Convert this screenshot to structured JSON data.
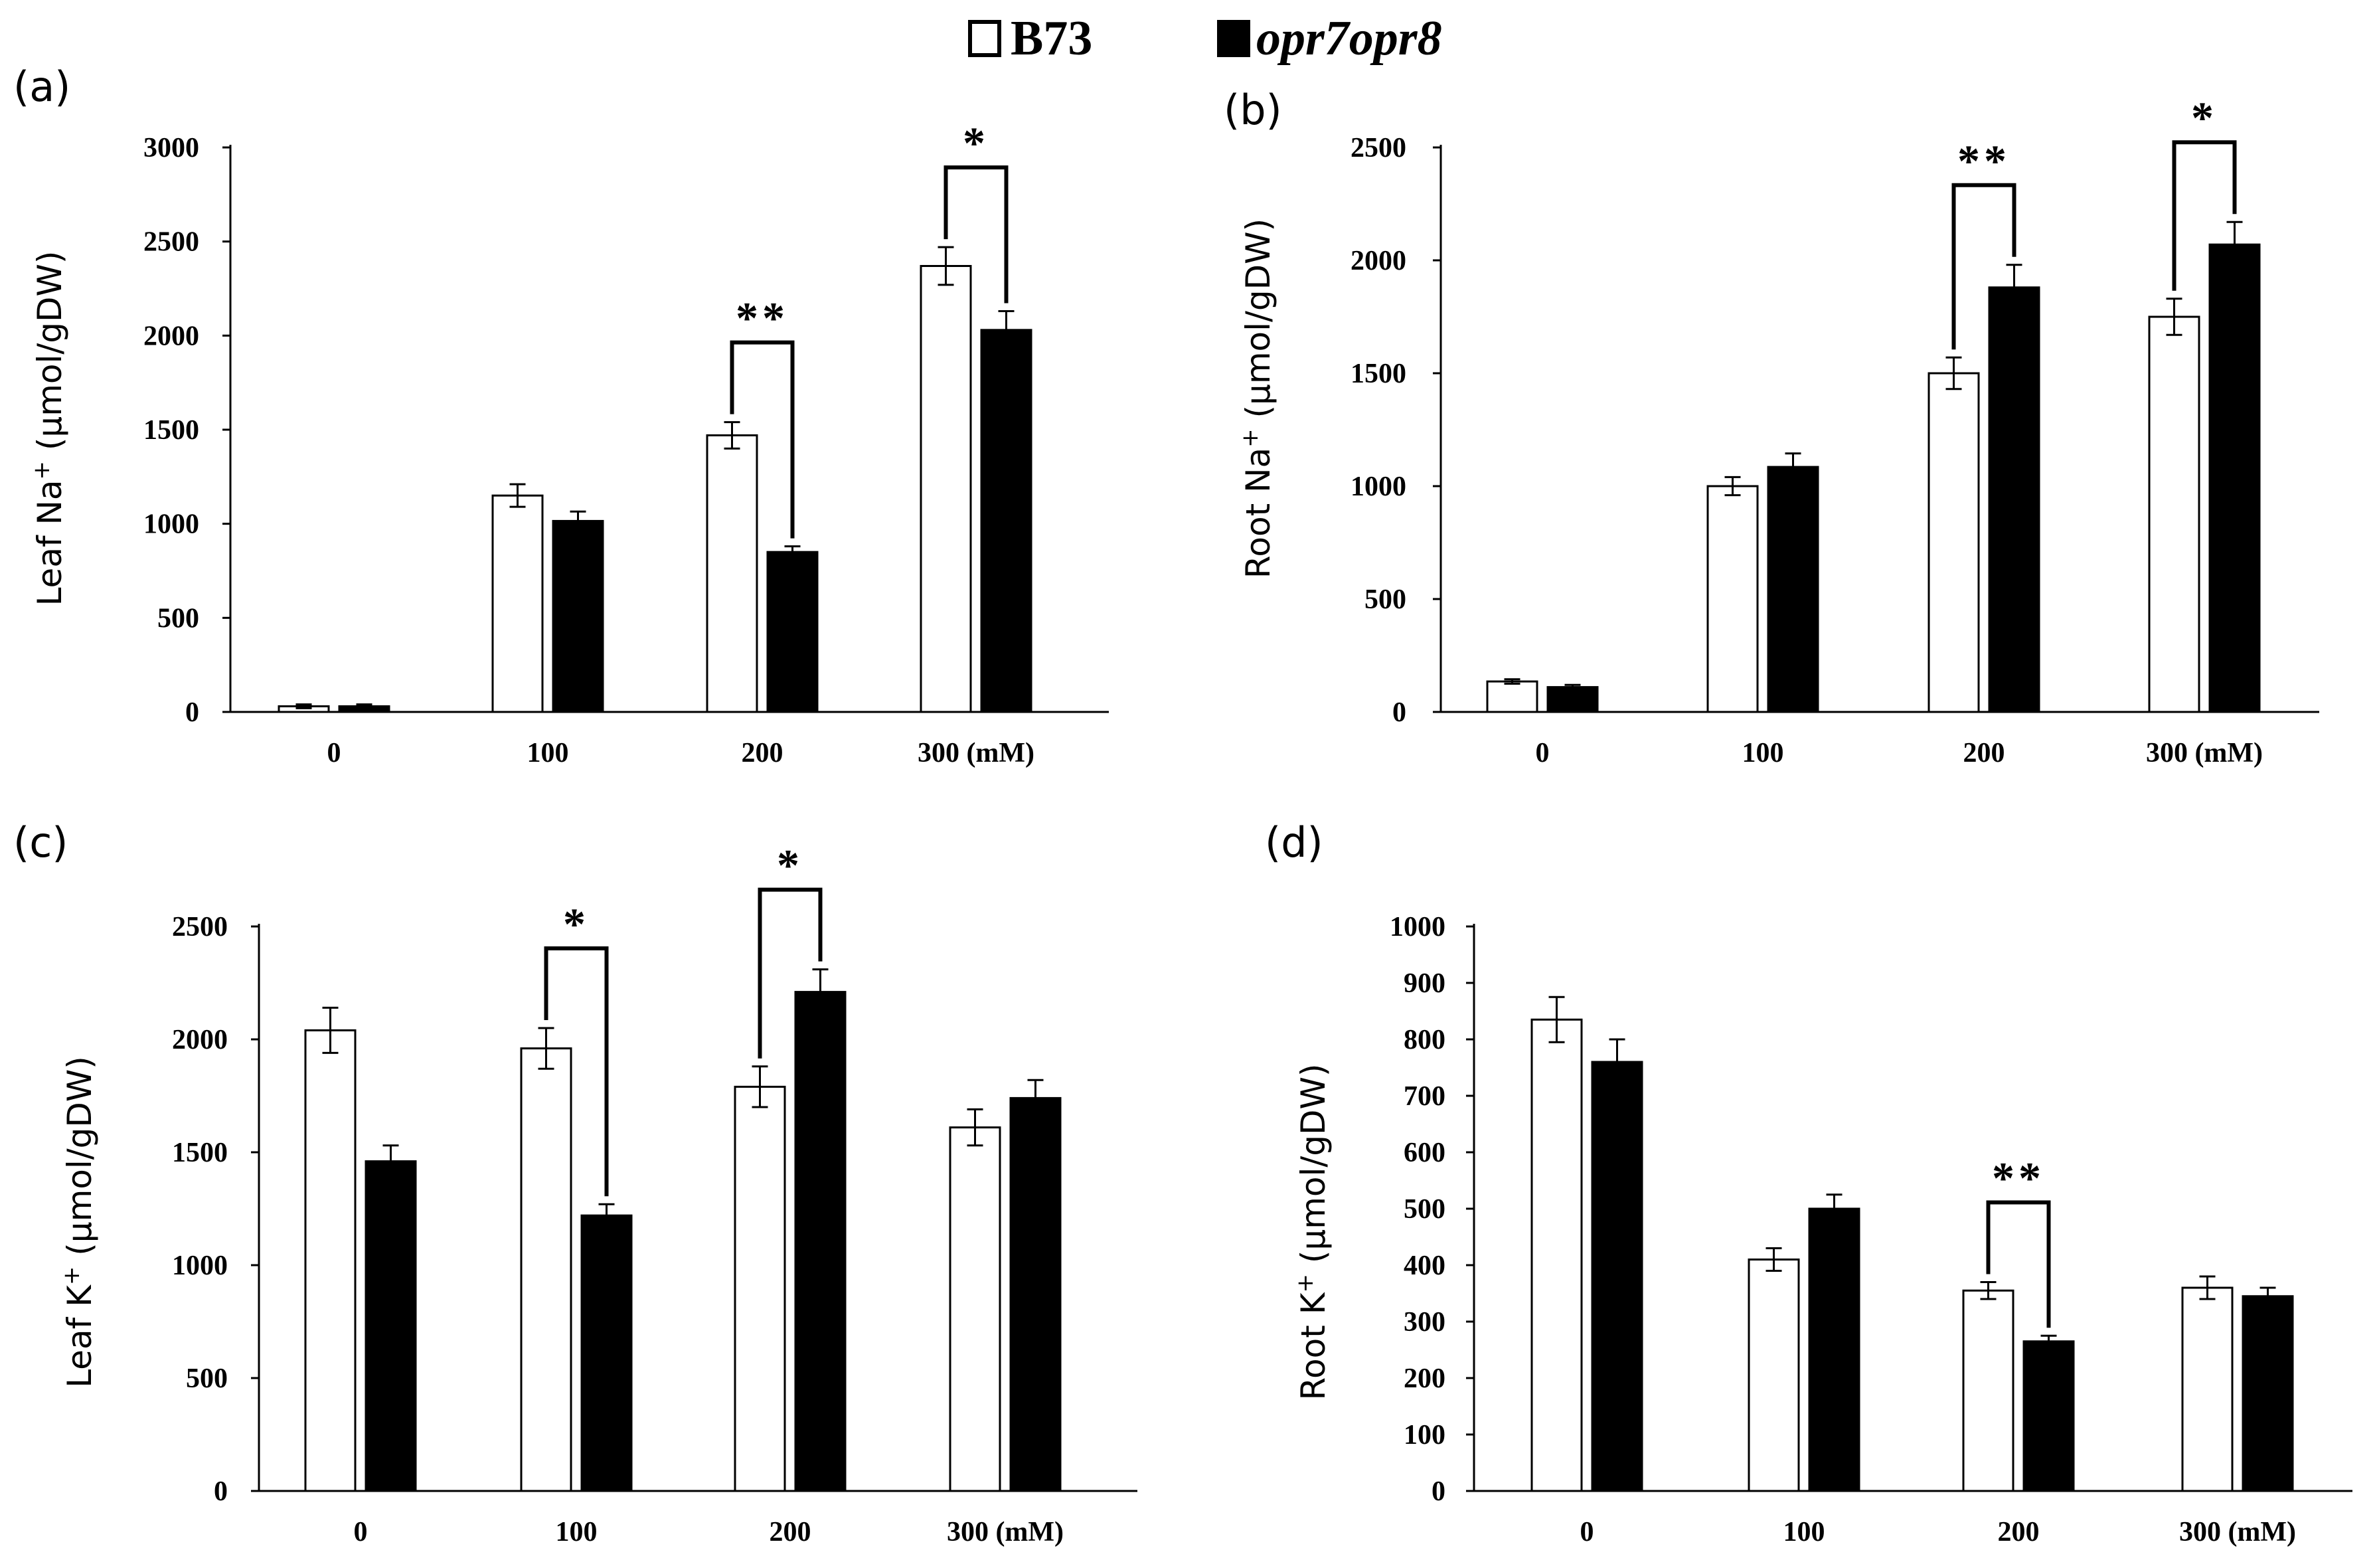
{
  "legend": [
    {
      "label": "B73",
      "italic": false,
      "fill": "#ffffff"
    },
    {
      "label": "opr7opr8",
      "italic": true,
      "fill": "#000000"
    }
  ],
  "chart_data": [
    {
      "type": "bar",
      "panel_label": "(a)",
      "ylabel_main": "Leaf Na",
      "ylabel_sup": "+",
      "ylabel_rest": " (µmol/gDW)",
      "categories": [
        "0",
        "100",
        "200",
        "300 (mM)"
      ],
      "yticks": [
        "0",
        "500",
        "1000",
        "1500",
        "2000",
        "2500",
        "3000"
      ],
      "ylim": [
        0,
        3000
      ],
      "series": [
        {
          "name": "B73",
          "values": [
            30,
            1150,
            1470,
            2370
          ],
          "errors": [
            10,
            60,
            70,
            100
          ]
        },
        {
          "name": "opr7opr8",
          "values": [
            30,
            1015,
            850,
            2030
          ],
          "errors": [
            10,
            50,
            30,
            100
          ]
        }
      ],
      "significance": [
        {
          "category": "200",
          "label": "**"
        },
        {
          "category": "300 (mM)",
          "label": "*"
        }
      ]
    },
    {
      "type": "bar",
      "panel_label": "(b)",
      "ylabel_main": "Root Na",
      "ylabel_sup": "+",
      "ylabel_rest": " (µmol/gDW)",
      "categories": [
        "0",
        "100",
        "200",
        "300 (mM)"
      ],
      "yticks": [
        "0",
        "500",
        "1000",
        "1500",
        "2000",
        "2500"
      ],
      "ylim": [
        0,
        2500
      ],
      "series": [
        {
          "name": "B73",
          "values": [
            135,
            1000,
            1500,
            1750
          ],
          "errors": [
            10,
            40,
            70,
            80
          ]
        },
        {
          "name": "opr7opr8",
          "values": [
            110,
            1085,
            1880,
            2070
          ],
          "errors": [
            10,
            60,
            100,
            100
          ]
        }
      ],
      "significance": [
        {
          "category": "200",
          "label": "**"
        },
        {
          "category": "300 (mM)",
          "label": "*"
        }
      ]
    },
    {
      "type": "bar",
      "panel_label": "(c)",
      "ylabel_main": "Leaf K",
      "ylabel_sup": "+",
      "ylabel_rest": " (µmol/gDW)",
      "categories": [
        "0",
        "100",
        "200",
        "300 (mM)"
      ],
      "yticks": [
        "0",
        "500",
        "1000",
        "1500",
        "2000",
        "2500"
      ],
      "ylim": [
        0,
        2500
      ],
      "series": [
        {
          "name": "B73",
          "values": [
            2040,
            1960,
            1790,
            1610
          ],
          "errors": [
            100,
            90,
            90,
            80
          ]
        },
        {
          "name": "opr7opr8",
          "values": [
            1460,
            1220,
            2210,
            1740
          ],
          "errors": [
            70,
            50,
            100,
            80
          ]
        }
      ],
      "significance": [
        {
          "category": "100",
          "label": "*"
        },
        {
          "category": "200",
          "label": "*"
        }
      ]
    },
    {
      "type": "bar",
      "panel_label": "(d)",
      "ylabel_main": "Root K",
      "ylabel_sup": "+",
      "ylabel_rest": " (µmol/gDW)",
      "categories": [
        "0",
        "100",
        "200",
        "300 (mM)"
      ],
      "yticks": [
        "0",
        "100",
        "200",
        "300",
        "400",
        "500",
        "600",
        "700",
        "800",
        "900",
        "1000"
      ],
      "ylim": [
        0,
        1000
      ],
      "series": [
        {
          "name": "B73",
          "values": [
            835,
            410,
            355,
            360
          ],
          "errors": [
            40,
            20,
            15,
            20
          ]
        },
        {
          "name": "opr7opr8",
          "values": [
            760,
            500,
            265,
            345
          ],
          "errors": [
            40,
            25,
            10,
            15
          ]
        }
      ],
      "significance": [
        {
          "category": "200",
          "label": "**"
        }
      ]
    }
  ]
}
